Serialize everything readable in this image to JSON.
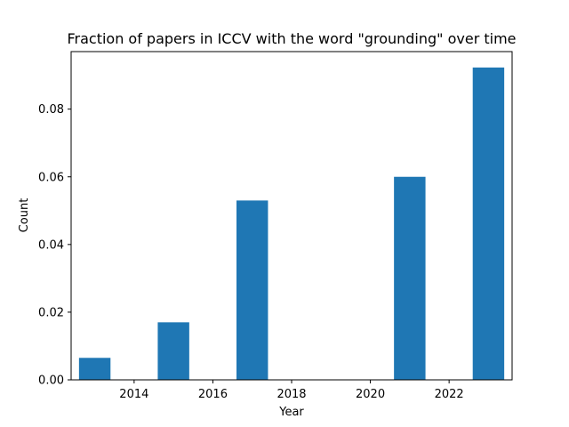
{
  "chart_data": {
    "type": "bar",
    "title": "Fraction of papers in ICCV with the word \"grounding\" over time",
    "xlabel": "Year",
    "ylabel": "Count",
    "x": [
      2013,
      2015,
      2017,
      2021,
      2023
    ],
    "values": [
      0.0065,
      0.017,
      0.053,
      0.06,
      0.0923
    ],
    "bar_width_years": 0.8,
    "xlim": [
      2012.4,
      2023.6
    ],
    "ylim": [
      0,
      0.097
    ],
    "xticks": [
      2014,
      2016,
      2018,
      2020,
      2022
    ],
    "yticks": [
      0.0,
      0.02,
      0.04,
      0.06,
      0.08
    ],
    "xtick_labels": [
      "2014",
      "2016",
      "2018",
      "2020",
      "2022"
    ],
    "ytick_labels": [
      "0.00",
      "0.02",
      "0.04",
      "0.06",
      "0.08"
    ],
    "grid": false,
    "bar_color": "#1f77b4"
  }
}
